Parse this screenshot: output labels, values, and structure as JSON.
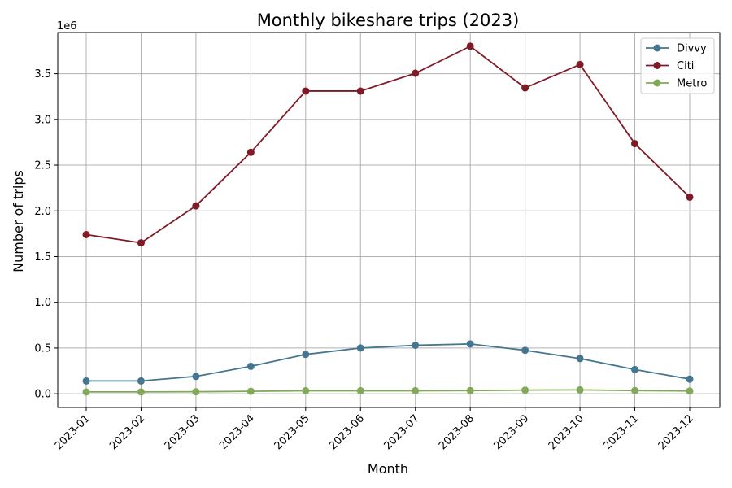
{
  "chart_data": {
    "type": "line",
    "title": "Monthly bikeshare trips (2023)",
    "xlabel": "Month",
    "ylabel": "Number of trips",
    "y_offset_label": "1e6",
    "categories": [
      "2023-01",
      "2023-02",
      "2023-03",
      "2023-04",
      "2023-05",
      "2023-06",
      "2023-07",
      "2023-08",
      "2023-09",
      "2023-10",
      "2023-11",
      "2023-12"
    ],
    "ylim": [
      -150000,
      3950000
    ],
    "yticks": [
      0,
      500000,
      1000000,
      1500000,
      2000000,
      2500000,
      3000000,
      3500000
    ],
    "ytick_labels": [
      "0.0",
      "0.5",
      "1.0",
      "1.5",
      "2.0",
      "2.5",
      "3.0",
      "3.5"
    ],
    "grid": true,
    "legend_position": "top-right",
    "series": [
      {
        "name": "Divvy",
        "color": "#44778f",
        "values": [
          140000,
          140000,
          190000,
          300000,
          430000,
          500000,
          530000,
          545000,
          475000,
          385000,
          265000,
          160000
        ]
      },
      {
        "name": "Citi",
        "color": "#7f1a26",
        "values": [
          1740000,
          1650000,
          2055000,
          2640000,
          3310000,
          3310000,
          3505000,
          3800000,
          3345000,
          3600000,
          2735000,
          2150000
        ]
      },
      {
        "name": "Metro",
        "color": "#82a85a",
        "values": [
          20000,
          20000,
          22000,
          27000,
          33000,
          33000,
          33000,
          35000,
          40000,
          42000,
          35000,
          30000
        ]
      }
    ]
  }
}
